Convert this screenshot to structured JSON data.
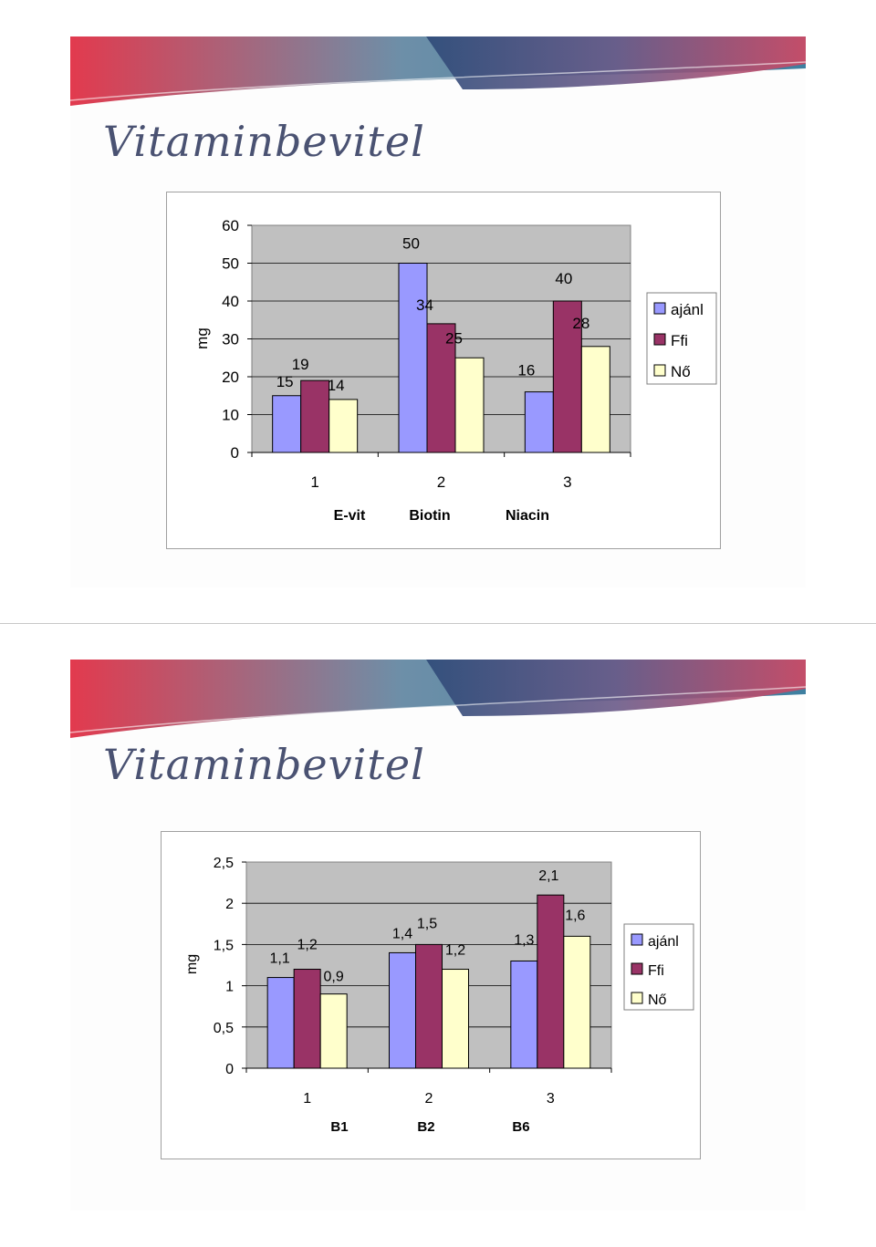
{
  "slides": [
    {
      "title": "Vitaminbevitel",
      "chart_data": {
        "type": "bar",
        "categories": [
          "1",
          "2",
          "3"
        ],
        "category_names": [
          "E-vit",
          "Biotin",
          "Niacin"
        ],
        "series": [
          {
            "name": "ajánl",
            "values": [
              15,
              50,
              16
            ],
            "labels": [
              "15",
              "50",
              "16"
            ],
            "color": "#9999ff"
          },
          {
            "name": "Ffi",
            "values": [
              19,
              34,
              40
            ],
            "labels": [
              "19",
              "34",
              "40"
            ],
            "color": "#993366"
          },
          {
            "name": "Nő",
            "values": [
              14,
              25,
              28
            ],
            "labels": [
              "14",
              "25",
              "28"
            ],
            "color": "#ffffcc"
          }
        ],
        "yticks": [
          "0",
          "10",
          "20",
          "30",
          "40",
          "50",
          "60"
        ],
        "ylim": [
          0,
          60
        ],
        "ylabel": "mg",
        "grid": true,
        "legend_position": "right",
        "plot_background": "#c0c0c0"
      }
    },
    {
      "title": "Vitaminbevitel",
      "chart_data": {
        "type": "bar",
        "categories": [
          "1",
          "2",
          "3"
        ],
        "category_names": [
          "B1",
          "B2",
          "B6"
        ],
        "series": [
          {
            "name": "ajánl",
            "values": [
              1.1,
              1.4,
              1.3
            ],
            "labels": [
              "1,1",
              "1,4",
              "1,3"
            ],
            "color": "#9999ff"
          },
          {
            "name": "Ffi",
            "values": [
              1.2,
              1.5,
              2.1
            ],
            "labels": [
              "1,2",
              "1,5",
              "2,1"
            ],
            "color": "#993366"
          },
          {
            "name": "Nő",
            "values": [
              0.9,
              1.2,
              1.6
            ],
            "labels": [
              "0,9",
              "1,2",
              "1,6"
            ],
            "color": "#ffffcc"
          }
        ],
        "yticks": [
          "0",
          "0,5",
          "1",
          "1,5",
          "2",
          "2,5"
        ],
        "ylim": [
          0,
          2.5
        ],
        "ylabel": "mg",
        "grid": true,
        "legend_position": "right",
        "plot_background": "#c0c0c0"
      }
    }
  ]
}
